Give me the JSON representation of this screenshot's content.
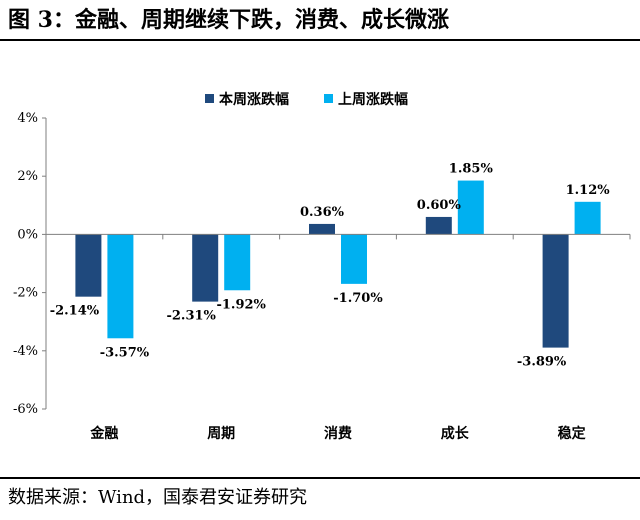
{
  "figure": {
    "title": "图 3：金融、周期继续下跌，消费、成长微涨",
    "source": "数据来源：Wind，国泰君安证券研究"
  },
  "colors": {
    "series_this_week": "#1F497D",
    "series_last_week": "#00B0F0",
    "axis": "#7F7F7F"
  },
  "chart_data": {
    "type": "bar",
    "categories": [
      "金融",
      "周期",
      "消费",
      "成长",
      "稳定"
    ],
    "series": [
      {
        "name": "本周涨跌幅",
        "values": [
          -2.14,
          -2.31,
          0.36,
          0.6,
          -3.89
        ],
        "labels": [
          "-2.14%",
          "-2.31%",
          "0.36%",
          "0.60%",
          "-3.89%"
        ]
      },
      {
        "name": "上周涨跌幅",
        "values": [
          -3.57,
          -1.92,
          -1.7,
          1.85,
          1.12
        ],
        "labels": [
          "-3.57%",
          "-1.92%",
          "-1.70%",
          "1.85%",
          "1.12%"
        ]
      }
    ],
    "yticks": [
      4,
      2,
      0,
      -2,
      -4,
      -6
    ],
    "ytick_labels": [
      "4%",
      "2%",
      "0%",
      "-2%",
      "-4%",
      "-6%"
    ],
    "ylim": [
      -6,
      4
    ],
    "legend": "top-center",
    "grid": false
  }
}
